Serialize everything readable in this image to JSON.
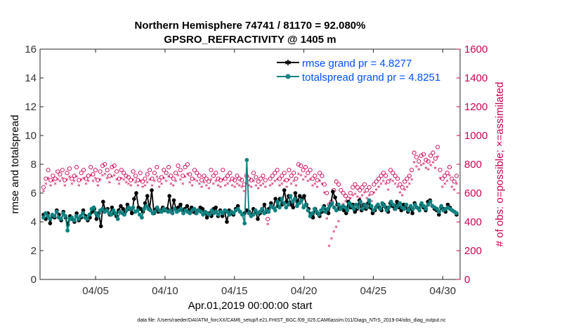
{
  "chart_data": {
    "type": "line",
    "title_line1": "Northern Hemisphere 74741 / 81170 = 92.080%",
    "title_line2": "GPSRO_REFRACTIVITY @ 1405 m",
    "xlabel": "Apr.01,2019 00:00:00 start",
    "ylabel": "rmse and totalspread",
    "ylabel_right": "# of obs: o=possible; ×=assimilated",
    "footnote": "data file: /Users/raeder/DAI/ATM_forcXX/CAM6_setup/f.e21.FHIST_BGC.f09_025.CAM6assim.011/Diags_NTrS_2019-04/obs_diag_output.nc",
    "xlim": [
      1,
      31.25
    ],
    "ylim": [
      0,
      16
    ],
    "ylim_right": [
      0,
      1600
    ],
    "x_ticks": [
      5,
      10,
      15,
      20,
      25,
      30
    ],
    "x_tick_labels": [
      "04/05",
      "04/10",
      "04/15",
      "04/20",
      "04/25",
      "04/30"
    ],
    "y_ticks": [
      0,
      2,
      4,
      6,
      8,
      10,
      12,
      14,
      16
    ],
    "y_tick_labels": [
      "0",
      "2",
      "4",
      "6",
      "8",
      "10",
      "12",
      "14",
      "16"
    ],
    "y_ticks_right": [
      0,
      200,
      400,
      600,
      800,
      1000,
      1200,
      1400,
      1600
    ],
    "y_tick_labels_right": [
      "0",
      "200",
      "400",
      "600",
      "800",
      "1000",
      "1200",
      "1400",
      "1600"
    ],
    "colors": {
      "rmse": "#000000",
      "spread": "#0f8080",
      "obs": "#cc0055",
      "legend_text": "#0050ff"
    },
    "series": [
      {
        "name": "rmse",
        "label": "rmse grand pr = 4.8277",
        "values": [
          4.5,
          4.2,
          4.6,
          3.9,
          4.4,
          4.3,
          4.8,
          4.5,
          4.1,
          4.7,
          4.3,
          3.8,
          4.4,
          4.2,
          4.0,
          4.6,
          4.1,
          4.3,
          4.8,
          4.4,
          4.1,
          4.3,
          4.7,
          4.9,
          4.2,
          4.6,
          3.7,
          5.4,
          4.8,
          4.9,
          4.5,
          5.0,
          4.6,
          4.4,
          4.8,
          5.1,
          4.9,
          4.7,
          5.2,
          4.9,
          4.6,
          5.6,
          6.0,
          5.0,
          4.9,
          4.7,
          5.3,
          5.8,
          4.9,
          6.2,
          4.6,
          4.9,
          4.7,
          4.8,
          5.0,
          4.8,
          4.9,
          5.8,
          4.7,
          5.5,
          4.9,
          5.0,
          5.2,
          4.8,
          4.9,
          5.1,
          4.8,
          5.0,
          4.7,
          4.6,
          4.8,
          5.0,
          4.9,
          4.7,
          4.3,
          4.6,
          4.4,
          4.9,
          5.0,
          4.4,
          4.8,
          4.4,
          4.7,
          4.0,
          4.8,
          4.6,
          4.5,
          4.9,
          5.1,
          4.7,
          4.5,
          4.6,
          4.8,
          4.7,
          4.5,
          4.9,
          4.7,
          4.2,
          4.6,
          4.8,
          5.2,
          4.7,
          4.9,
          5.3,
          5.0,
          5.6,
          5.1,
          5.6,
          5.2,
          6.2,
          5.4,
          5.8,
          5.2,
          5.0,
          6.0,
          5.4,
          5.8,
          5.6,
          5.8,
          5.2,
          4.9,
          4.4,
          4.3,
          4.9,
          4.6,
          4.4,
          4.7,
          5.1,
          4.7,
          4.6,
          5.2,
          6.1,
          5.7,
          5.2,
          4.9,
          5.0,
          4.8,
          4.6,
          5.4,
          5.0,
          5.2,
          4.7,
          4.9,
          5.5,
          4.8,
          5.2,
          4.9,
          5.3,
          5.0,
          4.6,
          4.8,
          5.1,
          5.0,
          4.8,
          5.2,
          5.0,
          4.7,
          5.3,
          5.1,
          4.9,
          5.4,
          5.0,
          4.8,
          5.2,
          5.0,
          4.7,
          5.0,
          4.6,
          5.3,
          5.0,
          4.9,
          5.2,
          5.0,
          4.8,
          5.4,
          5.5,
          5.1,
          4.9,
          4.8,
          4.5,
          5.0,
          4.9,
          4.7,
          5.2,
          5.0,
          4.8,
          4.7,
          4.5
        ]
      },
      {
        "name": "totalspread",
        "label": "totalspread grand pr = 4.8251",
        "values": [
          4.3,
          4.6,
          4.4,
          4.2,
          4.5,
          4.4,
          4.7,
          4.3,
          4.2,
          4.6,
          4.4,
          3.4,
          4.2,
          4.3,
          4.1,
          4.4,
          4.2,
          4.4,
          4.6,
          4.3,
          4.2,
          4.5,
          4.9,
          5.0,
          4.6,
          4.4,
          4.8,
          4.9,
          4.7,
          4.8,
          4.6,
          4.5,
          4.8,
          4.6,
          4.2,
          4.7,
          4.6,
          4.5,
          4.8,
          5.0,
          4.9,
          5.0,
          4.7,
          4.8,
          4.5,
          4.3,
          4.9,
          5.1,
          4.9,
          4.8,
          4.6,
          4.7,
          5.0,
          4.8,
          4.7,
          4.9,
          4.8,
          4.7,
          4.8,
          4.6,
          4.9,
          4.7,
          4.8,
          4.9,
          4.6,
          4.8,
          4.7,
          4.6,
          4.8,
          4.9,
          4.6,
          4.8,
          4.7,
          4.5,
          4.7,
          4.6,
          4.5,
          4.8,
          4.6,
          4.7,
          4.5,
          4.7,
          4.6,
          4.8,
          4.7,
          4.5,
          4.7,
          4.6,
          4.8,
          4.9,
          4.7,
          4.5,
          3.9,
          8.3,
          4.6,
          4.4,
          4.5,
          4.8,
          4.6,
          4.7,
          4.9,
          4.6,
          4.8,
          4.7,
          5.1,
          5.0,
          4.8,
          5.4,
          5.0,
          5.6,
          5.3,
          5.0,
          5.2,
          5.8,
          5.4,
          5.6,
          5.1,
          5.3,
          5.5,
          5.0,
          5.2,
          4.8,
          4.4,
          4.6,
          4.9,
          4.7,
          4.5,
          4.8,
          5.0,
          4.7,
          4.9,
          5.1,
          5.3,
          5.0,
          4.8,
          5.2,
          4.9,
          5.1,
          5.0,
          4.8,
          5.3,
          5.1,
          4.9,
          5.2,
          5.0,
          5.4,
          4.9,
          5.2,
          5.0,
          5.5,
          5.1,
          4.8,
          5.0,
          5.2,
          4.9,
          5.3,
          5.1,
          4.8,
          5.0,
          5.4,
          5.2,
          4.9,
          5.1,
          5.3,
          5.0,
          4.9,
          5.2,
          4.8,
          5.1,
          4.9,
          5.2,
          5.0,
          4.8,
          5.3,
          5.1,
          4.9,
          5.2,
          5.4,
          5.1,
          5.0,
          4.9,
          4.7,
          5.1,
          4.8,
          4.9,
          5.0,
          4.9,
          4.8,
          4.7,
          4.6
        ]
      },
      {
        "name": "possible",
        "label": "possible",
        "values": [
          640,
          700,
          760,
          690,
          720,
          700,
          750,
          730,
          760,
          690,
          740,
          770,
          700,
          720,
          780,
          690,
          740,
          760,
          700,
          720,
          780,
          730,
          760,
          690,
          750,
          790,
          800,
          760,
          720,
          780,
          790,
          750,
          700,
          760,
          740,
          720,
          710,
          690,
          750,
          720,
          690,
          740,
          680,
          700,
          730,
          760,
          700,
          740,
          780,
          690,
          710,
          760,
          740,
          780,
          720,
          700,
          740,
          790,
          760,
          720,
          780,
          800,
          730,
          700,
          760,
          740,
          720,
          690,
          720,
          700,
          680,
          760,
          720,
          740,
          700,
          690,
          760,
          700,
          720,
          740,
          700,
          690,
          720,
          700,
          690,
          660,
          720,
          700,
          690,
          740,
          710,
          680,
          700,
          720,
          690,
          420,
          700,
          720,
          740,
          760,
          700,
          720,
          740,
          690,
          760,
          720,
          740,
          700,
          800,
          790,
          760,
          780,
          740,
          760,
          700,
          720,
          690,
          740,
          720,
          660,
          600,
          520,
          540,
          620,
          680,
          660,
          620,
          600,
          580,
          560,
          600,
          640,
          660,
          640,
          620,
          640,
          660,
          620,
          640,
          600,
          660,
          680,
          700,
          720,
          740,
          720,
          680,
          760,
          740,
          720,
          700,
          660,
          640,
          680,
          700,
          720,
          760,
          880,
          850,
          820,
          860,
          870,
          830,
          820,
          860,
          880,
          840,
          920,
          760,
          700,
          720,
          740,
          780,
          700,
          680,
          720
        ]
      },
      {
        "name": "assimilated",
        "label": "assimilated",
        "values": [
          610,
          660,
          700,
          650,
          680,
          660,
          690,
          680,
          700,
          650,
          690,
          710,
          660,
          680,
          710,
          650,
          690,
          700,
          660,
          680,
          720,
          680,
          700,
          650,
          690,
          720,
          730,
          700,
          670,
          710,
          720,
          690,
          660,
          700,
          690,
          670,
          660,
          650,
          690,
          670,
          650,
          680,
          640,
          650,
          670,
          690,
          650,
          680,
          710,
          640,
          660,
          700,
          680,
          710,
          660,
          650,
          680,
          720,
          690,
          660,
          710,
          730,
          670,
          650,
          690,
          680,
          660,
          640,
          670,
          650,
          630,
          690,
          660,
          680,
          650,
          640,
          690,
          650,
          660,
          680,
          650,
          640,
          660,
          650,
          640,
          610,
          660,
          650,
          640,
          680,
          650,
          630,
          650,
          660,
          640,
          380,
          650,
          660,
          680,
          690,
          650,
          660,
          680,
          640,
          690,
          660,
          680,
          650,
          730,
          720,
          690,
          710,
          680,
          690,
          650,
          660,
          640,
          680,
          660,
          600,
          420,
          230,
          280,
          330,
          360,
          400,
          480,
          520,
          540,
          500,
          560,
          580,
          590,
          570,
          560,
          580,
          600,
          560,
          580,
          540,
          600,
          620,
          640,
          660,
          680,
          660,
          620,
          690,
          680,
          660,
          640,
          600,
          580,
          620,
          640,
          660,
          690,
          810,
          780,
          760,
          790,
          800,
          770,
          760,
          790,
          810,
          770,
          850,
          700,
          640,
          660,
          680,
          720,
          640,
          620,
          660
        ]
      }
    ]
  },
  "legend": {
    "rmse_label": "rmse grand pr = 4.8277",
    "spread_label": "totalspread grand pr = 4.8251"
  }
}
